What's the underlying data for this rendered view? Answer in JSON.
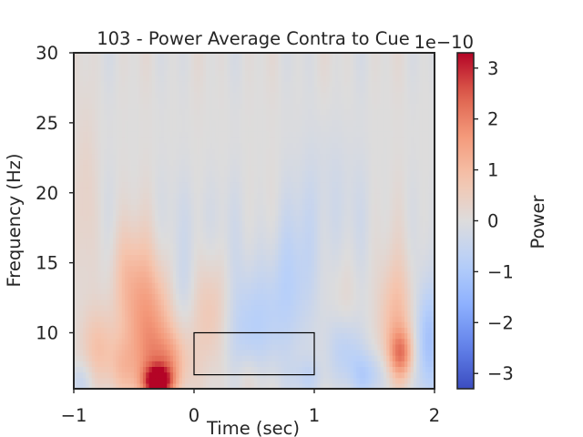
{
  "chart_data": {
    "type": "heatmap",
    "title": "103 - Power Average Contra to Cue",
    "xlabel": "Time (sec)",
    "ylabel": "Frequency (Hz)",
    "xlim": [
      -1,
      2
    ],
    "ylim": [
      6,
      30
    ],
    "xticks": [
      -1,
      0,
      1,
      2
    ],
    "xtick_labels": [
      "−1",
      "0",
      "1",
      "2"
    ],
    "yticks": [
      10,
      15,
      20,
      25,
      30
    ],
    "ytick_labels": [
      "10",
      "15",
      "20",
      "25",
      "30"
    ],
    "grid": false,
    "colormap": "coolwarm",
    "colorbar": {
      "label": "Power",
      "range": [
        -3.3,
        3.3
      ],
      "ticks": [
        -3,
        -2,
        -1,
        0,
        1,
        2,
        3
      ],
      "tick_labels": [
        "−3",
        "−2",
        "−1",
        "0",
        "1",
        "2",
        "3"
      ],
      "offset_text": "1e−10",
      "scale": 1e-10
    },
    "rectangle": {
      "x0": 0,
      "x1": 1,
      "y0": 7,
      "y1": 10,
      "color": "#000000"
    },
    "blobs": [
      {
        "t": -0.3,
        "f": 6.5,
        "st": 0.08,
        "sf": 0.8,
        "v": 3.2
      },
      {
        "t": -0.38,
        "f": 10.5,
        "st": 0.15,
        "sf": 3.5,
        "v": 1.6
      },
      {
        "t": -0.22,
        "f": 7.8,
        "st": 0.12,
        "sf": 1.6,
        "v": 1.2
      },
      {
        "t": -0.55,
        "f": 14.5,
        "st": 0.1,
        "sf": 2.5,
        "v": 0.6
      },
      {
        "t": 0.15,
        "f": 11.5,
        "st": 0.12,
        "sf": 3.0,
        "v": 0.9
      },
      {
        "t": 1.72,
        "f": 8.5,
        "st": 0.07,
        "sf": 1.2,
        "v": 1.6
      },
      {
        "t": 1.68,
        "f": 11.0,
        "st": 0.1,
        "sf": 3.0,
        "v": 1.0
      },
      {
        "t": -0.8,
        "f": 9.0,
        "st": 0.1,
        "sf": 2.0,
        "v": 0.8
      },
      {
        "t": -0.9,
        "f": 20.0,
        "st": 0.06,
        "sf": 5.0,
        "v": 0.35
      },
      {
        "t": -0.6,
        "f": 7.5,
        "st": 0.1,
        "sf": 1.5,
        "v": 0.6
      },
      {
        "t": 0.45,
        "f": 6.8,
        "st": 0.1,
        "sf": 1.2,
        "v": 0.4
      },
      {
        "t": 1.25,
        "f": 11.0,
        "st": 0.08,
        "sf": 3.0,
        "v": 0.35
      },
      {
        "t": 0.45,
        "f": 10.5,
        "st": 0.2,
        "sf": 3.0,
        "v": -0.8
      },
      {
        "t": 0.8,
        "f": 13.5,
        "st": 0.15,
        "sf": 3.5,
        "v": -0.6
      },
      {
        "t": 1.25,
        "f": 9.0,
        "st": 0.1,
        "sf": 1.8,
        "v": -0.9
      },
      {
        "t": 1.45,
        "f": 7.0,
        "st": 0.12,
        "sf": 1.2,
        "v": -0.8
      },
      {
        "t": 1.95,
        "f": 9.5,
        "st": 0.08,
        "sf": 3.0,
        "v": -1.2
      },
      {
        "t": -0.95,
        "f": 6.5,
        "st": 0.08,
        "sf": 1.0,
        "v": -0.6
      },
      {
        "t": 0.05,
        "f": 17.0,
        "st": 0.2,
        "sf": 3.0,
        "v": -0.3
      },
      {
        "t": 1.1,
        "f": 19.0,
        "st": 0.2,
        "sf": 4.0,
        "v": -0.35
      },
      {
        "t": 0.95,
        "f": 6.8,
        "st": 0.1,
        "sf": 1.0,
        "v": -0.5
      },
      {
        "t": -0.1,
        "f": 13.0,
        "st": 0.08,
        "sf": 2.0,
        "v": -0.4
      }
    ]
  }
}
